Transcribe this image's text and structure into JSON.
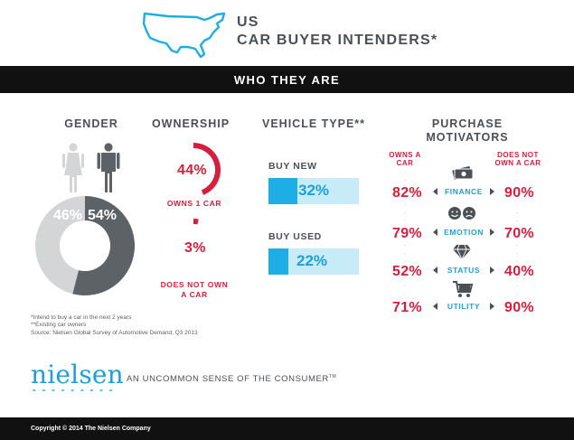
{
  "header": {
    "title_line1": "US",
    "title_line2": "CAR BUYER INTENDERS*",
    "map_icon": "us-map-outline-icon",
    "accent_color": "#1eaee6"
  },
  "banner": {
    "text": "WHO THEY ARE"
  },
  "footnotes": {
    "line1": "*Intend to buy a car in the next 2 years",
    "line2": "**Existing car owners",
    "line3": "Source: Nielsen Global Survey of Automotive Demand, Q3 2013"
  },
  "brand": {
    "logo": "nielsen",
    "tagline": "AN UNCOMMON SENSE OF THE CONSUMER",
    "tm": "TM",
    "copyright": "Copyright © 2014 The Nielsen Company"
  },
  "chart_data": [
    {
      "type": "pie",
      "title": "GENDER",
      "donut": true,
      "icons": [
        "female-icon",
        "male-icon"
      ],
      "slices": [
        {
          "label": "46%",
          "value": 46,
          "color": "#d3d5d7",
          "icon": "female-icon"
        },
        {
          "label": "54%",
          "value": 54,
          "color": "#5d6266",
          "icon": "male-icon"
        }
      ]
    },
    {
      "type": "pie",
      "title": "OWNERSHIP",
      "donut": true,
      "slices": [
        {
          "label": "OWNS 1 CAR",
          "value": 44,
          "value_label": "44%",
          "color": "#d71e3c"
        },
        {
          "label": "DOES NOT OWN A CAR",
          "value": 3,
          "value_label": "3%",
          "color": "#d71e3c"
        }
      ]
    },
    {
      "type": "bar",
      "title": "VEHICLE TYPE**",
      "orientation": "horizontal",
      "xlim": [
        0,
        100
      ],
      "categories": [
        "BUY NEW",
        "BUY USED"
      ],
      "values": [
        32,
        22
      ],
      "value_labels": [
        "32%",
        "22%"
      ],
      "fill_color": "#1eaee6",
      "track_color": "#c7ecf8"
    },
    {
      "type": "table",
      "title_line1": "PURCHASE",
      "title_line2": "MOTIVATORS",
      "columns": [
        "OWNS A CAR",
        "DOES NOT OWN A CAR"
      ],
      "col1_line1": "OWNS A",
      "col1_line2": "CAR",
      "col2_line1": "DOES NOT",
      "col2_line2": "OWN A CAR",
      "rows": [
        {
          "label": "FINANCE",
          "icon": "money-icon",
          "owns": 82,
          "owns_label": "82%",
          "not_own": 90,
          "not_own_label": "90%"
        },
        {
          "label": "EMOTION",
          "icon": "faces-icon",
          "owns": 79,
          "owns_label": "79%",
          "not_own": 70,
          "not_own_label": "70%"
        },
        {
          "label": "STATUS",
          "icon": "diamond-icon",
          "owns": 52,
          "owns_label": "52%",
          "not_own": 40,
          "not_own_label": "40%"
        },
        {
          "label": "UTILITY",
          "icon": "cart-icon",
          "owns": 71,
          "owns_label": "71%",
          "not_own": 90,
          "not_own_label": "90%"
        }
      ]
    }
  ]
}
